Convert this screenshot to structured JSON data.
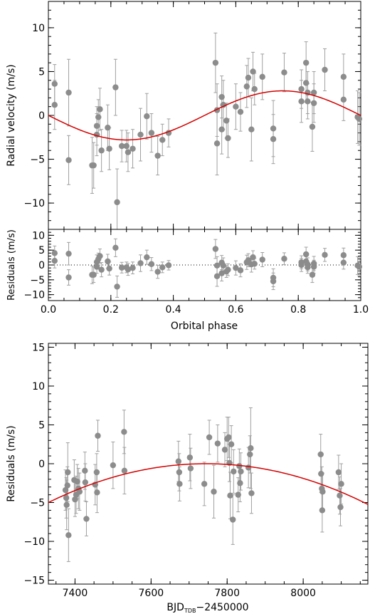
{
  "chart_data": [
    {
      "id": "rv",
      "type": "scatter",
      "xlabel": "",
      "ylabel": "Radial velocity (m/s)",
      "xlim": [
        0,
        1
      ],
      "ylim": [
        -13.0,
        13.0
      ],
      "xticks": [
        0.0,
        0.2,
        0.4,
        0.6,
        0.8,
        1.0
      ],
      "yticks": [
        -10,
        -5,
        0,
        5,
        10
      ],
      "ytick_labels": [
        "−10",
        "−5",
        "0",
        "5",
        "10"
      ],
      "model": "sinusoid, amplitude 2.8 m/s, minimum at phase 0.25, maximum at phase 0.75",
      "points": [
        {
          "x": 0.02,
          "y": 3.6,
          "e": 2.2
        },
        {
          "x": 0.02,
          "y": 1.2,
          "e": 2.8
        },
        {
          "x": 0.065,
          "y": 2.6,
          "e": 3.8
        },
        {
          "x": 0.065,
          "y": -5.1,
          "e": 2.8
        },
        {
          "x": 0.14,
          "y": -5.7,
          "e": 3.2
        },
        {
          "x": 0.145,
          "y": -5.7,
          "e": 2.6
        },
        {
          "x": 0.155,
          "y": -2.2,
          "e": 2.4
        },
        {
          "x": 0.155,
          "y": -1.2,
          "e": 2.2
        },
        {
          "x": 0.16,
          "y": -0.2,
          "e": 2.0
        },
        {
          "x": 0.165,
          "y": 0.7,
          "e": 2.4
        },
        {
          "x": 0.17,
          "y": -4.0,
          "e": 2.4
        },
        {
          "x": 0.19,
          "y": -1.4,
          "e": 2.6
        },
        {
          "x": 0.195,
          "y": -3.8,
          "e": 2.4
        },
        {
          "x": 0.215,
          "y": 3.2,
          "e": 3.2
        },
        {
          "x": 0.22,
          "y": -9.9,
          "e": 3.8
        },
        {
          "x": 0.235,
          "y": -3.5,
          "e": 1.8
        },
        {
          "x": 0.25,
          "y": -3.5,
          "e": 1.8
        },
        {
          "x": 0.255,
          "y": -4.2,
          "e": 2.2
        },
        {
          "x": 0.27,
          "y": -3.8,
          "e": 2.2
        },
        {
          "x": 0.295,
          "y": -2.2,
          "e": 3.0
        },
        {
          "x": 0.315,
          "y": -0.1,
          "e": 2.6
        },
        {
          "x": 0.33,
          "y": -2.0,
          "e": 2.2
        },
        {
          "x": 0.35,
          "y": -4.6,
          "e": 2.2
        },
        {
          "x": 0.365,
          "y": -2.8,
          "e": 1.8
        },
        {
          "x": 0.385,
          "y": -2.0,
          "e": 1.6
        },
        {
          "x": 0.535,
          "y": 6.0,
          "e": 3.4
        },
        {
          "x": 0.54,
          "y": 0.6,
          "e": 3.0
        },
        {
          "x": 0.54,
          "y": -3.2,
          "e": 3.6
        },
        {
          "x": 0.555,
          "y": 2.1,
          "e": 2.4
        },
        {
          "x": 0.555,
          "y": -1.6,
          "e": 2.8
        },
        {
          "x": 0.56,
          "y": 1.2,
          "e": 2.8
        },
        {
          "x": 0.57,
          "y": -0.6,
          "e": 2.0
        },
        {
          "x": 0.575,
          "y": -2.6,
          "e": 2.2
        },
        {
          "x": 0.6,
          "y": 1.0,
          "e": 2.6
        },
        {
          "x": 0.615,
          "y": 0.4,
          "e": 2.2
        },
        {
          "x": 0.635,
          "y": 3.3,
          "e": 2.4
        },
        {
          "x": 0.64,
          "y": 4.3,
          "e": 2.2
        },
        {
          "x": 0.65,
          "y": -1.6,
          "e": 3.6
        },
        {
          "x": 0.655,
          "y": 5.0,
          "e": 2.2
        },
        {
          "x": 0.66,
          "y": 3.0,
          "e": 1.8
        },
        {
          "x": 0.685,
          "y": 4.4,
          "e": 2.6
        },
        {
          "x": 0.72,
          "y": -1.5,
          "e": 3.2
        },
        {
          "x": 0.72,
          "y": -2.7,
          "e": 2.8
        },
        {
          "x": 0.755,
          "y": 4.9,
          "e": 2.2
        },
        {
          "x": 0.81,
          "y": 1.6,
          "e": 2.4
        },
        {
          "x": 0.81,
          "y": 3.0,
          "e": 2.2
        },
        {
          "x": 0.825,
          "y": 6.0,
          "e": 2.4
        },
        {
          "x": 0.825,
          "y": 3.7,
          "e": 2.2
        },
        {
          "x": 0.83,
          "y": 1.6,
          "e": 2.0
        },
        {
          "x": 0.83,
          "y": 2.6,
          "e": 2.4
        },
        {
          "x": 0.845,
          "y": -1.3,
          "e": 2.8
        },
        {
          "x": 0.85,
          "y": 1.4,
          "e": 2.2
        },
        {
          "x": 0.85,
          "y": 2.6,
          "e": 2.4
        },
        {
          "x": 0.885,
          "y": 5.2,
          "e": 2.4
        },
        {
          "x": 0.945,
          "y": 4.4,
          "e": 2.6
        },
        {
          "x": 0.945,
          "y": 1.8,
          "e": 2.4
        },
        {
          "x": 0.99,
          "y": -0.2,
          "e": 3.0
        },
        {
          "x": 0.995,
          "y": -0.4,
          "e": 3.0
        }
      ]
    },
    {
      "id": "res",
      "type": "scatter",
      "xlabel": "Orbital phase",
      "ylabel": "Residuals (m/s)",
      "xlim": [
        0,
        1
      ],
      "ylim": [
        -12,
        12
      ],
      "xticks": [
        0.0,
        0.2,
        0.4,
        0.6,
        0.8,
        1.0
      ],
      "xtick_labels": [
        "0.0",
        "0.2",
        "0.4",
        "0.6",
        "0.8",
        "1.0"
      ],
      "yticks": [
        -10,
        -5,
        0,
        5,
        10
      ],
      "ytick_labels": [
        "−10",
        "−5",
        "0",
        "5",
        "10"
      ],
      "reference_line": 0,
      "points": [
        {
          "x": 0.02,
          "y": 4.0,
          "e": 2.4
        },
        {
          "x": 0.02,
          "y": 1.4,
          "e": 2.4
        },
        {
          "x": 0.065,
          "y": 3.8,
          "e": 3.8
        },
        {
          "x": 0.065,
          "y": -4.2,
          "e": 2.6
        },
        {
          "x": 0.14,
          "y": -3.3,
          "e": 3.0
        },
        {
          "x": 0.145,
          "y": -3.3,
          "e": 2.6
        },
        {
          "x": 0.155,
          "y": 1.0,
          "e": 2.4
        },
        {
          "x": 0.155,
          "y": -0.6,
          "e": 2.2
        },
        {
          "x": 0.16,
          "y": 2.0,
          "e": 2.0
        },
        {
          "x": 0.165,
          "y": 3.0,
          "e": 2.4
        },
        {
          "x": 0.17,
          "y": -1.6,
          "e": 2.4
        },
        {
          "x": 0.19,
          "y": 1.2,
          "e": 2.4
        },
        {
          "x": 0.195,
          "y": -1.2,
          "e": 2.2
        },
        {
          "x": 0.215,
          "y": 5.8,
          "e": 3.0
        },
        {
          "x": 0.22,
          "y": -7.3,
          "e": 3.6
        },
        {
          "x": 0.235,
          "y": -0.9,
          "e": 1.8
        },
        {
          "x": 0.25,
          "y": -0.8,
          "e": 1.8
        },
        {
          "x": 0.255,
          "y": -1.5,
          "e": 2.0
        },
        {
          "x": 0.27,
          "y": -1.0,
          "e": 2.0
        },
        {
          "x": 0.295,
          "y": 0.6,
          "e": 2.8
        },
        {
          "x": 0.315,
          "y": 2.6,
          "e": 2.4
        },
        {
          "x": 0.33,
          "y": 0.3,
          "e": 2.2
        },
        {
          "x": 0.35,
          "y": -2.3,
          "e": 2.2
        },
        {
          "x": 0.365,
          "y": -0.8,
          "e": 1.8
        },
        {
          "x": 0.385,
          "y": -0.1,
          "e": 1.6
        },
        {
          "x": 0.535,
          "y": 5.4,
          "e": 3.2
        },
        {
          "x": 0.54,
          "y": -0.2,
          "e": 3.0
        },
        {
          "x": 0.54,
          "y": -3.8,
          "e": 3.4
        },
        {
          "x": 0.555,
          "y": 0.8,
          "e": 2.4
        },
        {
          "x": 0.555,
          "y": -2.8,
          "e": 2.6
        },
        {
          "x": 0.56,
          "y": -0.2,
          "e": 2.6
        },
        {
          "x": 0.57,
          "y": -2.2,
          "e": 2.0
        },
        {
          "x": 0.575,
          "y": -1.6,
          "e": 2.0
        },
        {
          "x": 0.6,
          "y": -1.0,
          "e": 2.4
        },
        {
          "x": 0.615,
          "y": -1.8,
          "e": 2.2
        },
        {
          "x": 0.635,
          "y": 0.9,
          "e": 2.4
        },
        {
          "x": 0.64,
          "y": 1.6,
          "e": 2.2
        },
        {
          "x": 0.65,
          "y": 0.2,
          "e": 2.6
        },
        {
          "x": 0.655,
          "y": 2.6,
          "e": 2.2
        },
        {
          "x": 0.66,
          "y": 0.4,
          "e": 1.8
        },
        {
          "x": 0.685,
          "y": 1.8,
          "e": 2.4
        },
        {
          "x": 0.72,
          "y": -4.3,
          "e": 3.0
        },
        {
          "x": 0.72,
          "y": -5.5,
          "e": 2.8
        },
        {
          "x": 0.755,
          "y": 2.1,
          "e": 2.0
        },
        {
          "x": 0.81,
          "y": 0.0,
          "e": 2.2
        },
        {
          "x": 0.81,
          "y": 0.9,
          "e": 2.2
        },
        {
          "x": 0.825,
          "y": 3.6,
          "e": 2.4
        },
        {
          "x": 0.825,
          "y": 1.2,
          "e": 2.2
        },
        {
          "x": 0.83,
          "y": -0.8,
          "e": 2.0
        },
        {
          "x": 0.83,
          "y": 0.2,
          "e": 2.2
        },
        {
          "x": 0.845,
          "y": -3.3,
          "e": 2.6
        },
        {
          "x": 0.85,
          "y": -0.6,
          "e": 2.2
        },
        {
          "x": 0.85,
          "y": 0.5,
          "e": 2.4
        },
        {
          "x": 0.885,
          "y": 3.4,
          "e": 2.2
        },
        {
          "x": 0.945,
          "y": 3.3,
          "e": 2.4
        },
        {
          "x": 0.945,
          "y": 0.8,
          "e": 2.2
        },
        {
          "x": 0.99,
          "y": -0.2,
          "e": 3.0
        },
        {
          "x": 0.995,
          "y": -0.6,
          "e": 3.0
        }
      ]
    },
    {
      "id": "time",
      "type": "scatter",
      "xlabel_main": "BJD",
      "xlabel_sub": "TDB",
      "xlabel_rest": "−2450000",
      "ylabel": "Residuals (m/s)",
      "xlim": [
        7330,
        8170
      ],
      "ylim": [
        -15.5,
        15.5
      ],
      "xticks": [
        7400,
        7600,
        7800,
        8000
      ],
      "xtick_labels": [
        "7400",
        "7600",
        "7800",
        "8000"
      ],
      "yticks": [
        -15,
        -10,
        -5,
        0,
        5,
        10,
        15
      ],
      "ytick_labels": [
        "−15",
        "−10",
        "−5",
        "0",
        "5",
        "10",
        "15"
      ],
      "model": "quadratic trend, peak 0 m/s near 7745, about −5 m/s at 7330",
      "points": [
        {
          "x": 7375,
          "y": -3.4,
          "e": 2.6
        },
        {
          "x": 7377,
          "y": -4.4,
          "e": 2.6
        },
        {
          "x": 7378,
          "y": -5.3,
          "e": 3.2
        },
        {
          "x": 7380,
          "y": -2.8,
          "e": 2.4
        },
        {
          "x": 7381,
          "y": -1.1,
          "e": 3.8
        },
        {
          "x": 7383,
          "y": -9.2,
          "e": 3.4
        },
        {
          "x": 7398,
          "y": -2.1,
          "e": 2.6
        },
        {
          "x": 7400,
          "y": -4.6,
          "e": 2.2
        },
        {
          "x": 7403,
          "y": -4.0,
          "e": 2.4
        },
        {
          "x": 7406,
          "y": -2.3,
          "e": 2.2
        },
        {
          "x": 7409,
          "y": -3.2,
          "e": 2.6
        },
        {
          "x": 7412,
          "y": -3.6,
          "e": 2.4
        },
        {
          "x": 7426,
          "y": -0.9,
          "e": 2.4
        },
        {
          "x": 7427,
          "y": -2.4,
          "e": 2.4
        },
        {
          "x": 7430,
          "y": -7.1,
          "e": 2.2
        },
        {
          "x": 7453,
          "y": -2.7,
          "e": 2.6
        },
        {
          "x": 7457,
          "y": -1.1,
          "e": 2.4
        },
        {
          "x": 7458,
          "y": -3.7,
          "e": 2.6
        },
        {
          "x": 7460,
          "y": 3.6,
          "e": 2.0
        },
        {
          "x": 7500,
          "y": -0.2,
          "e": 3.0
        },
        {
          "x": 7529,
          "y": 4.1,
          "e": 2.8
        },
        {
          "x": 7530,
          "y": -0.9,
          "e": 3.0
        },
        {
          "x": 7672,
          "y": 0.3,
          "e": 2.6
        },
        {
          "x": 7674,
          "y": -1.1,
          "e": 2.4
        },
        {
          "x": 7675,
          "y": -2.6,
          "e": 2.2
        },
        {
          "x": 7702,
          "y": 0.8,
          "e": 3.0
        },
        {
          "x": 7704,
          "y": -0.6,
          "e": 2.6
        },
        {
          "x": 7740,
          "y": -2.6,
          "e": 2.8
        },
        {
          "x": 7753,
          "y": 3.4,
          "e": 2.2
        },
        {
          "x": 7765,
          "y": -3.6,
          "e": 3.4
        },
        {
          "x": 7775,
          "y": 2.6,
          "e": 2.4
        },
        {
          "x": 7794,
          "y": 1.8,
          "e": 2.2
        },
        {
          "x": 7800,
          "y": 3.2,
          "e": 2.8
        },
        {
          "x": 7804,
          "y": 3.4,
          "e": 2.6
        },
        {
          "x": 7806,
          "y": 0.1,
          "e": 2.4
        },
        {
          "x": 7808,
          "y": -4.1,
          "e": 3.0
        },
        {
          "x": 7811,
          "y": 2.5,
          "e": 2.4
        },
        {
          "x": 7815,
          "y": -7.2,
          "e": 3.2
        },
        {
          "x": 7817,
          "y": -1.0,
          "e": 2.8
        },
        {
          "x": 7829,
          "y": -4.0,
          "e": 2.2
        },
        {
          "x": 7832,
          "y": -0.3,
          "e": 2.2
        },
        {
          "x": 7834,
          "y": -2.5,
          "e": 2.4
        },
        {
          "x": 7836,
          "y": -1.0,
          "e": 2.4
        },
        {
          "x": 7856,
          "y": -0.5,
          "e": 2.6
        },
        {
          "x": 7860,
          "y": 1.2,
          "e": 2.4
        },
        {
          "x": 7862,
          "y": 2.0,
          "e": 5.2
        },
        {
          "x": 7864,
          "y": -3.8,
          "e": 2.6
        },
        {
          "x": 8046,
          "y": 1.2,
          "e": 2.6
        },
        {
          "x": 8047,
          "y": -1.3,
          "e": 2.4
        },
        {
          "x": 8049,
          "y": -3.2,
          "e": 2.8
        },
        {
          "x": 8050,
          "y": -6.0,
          "e": 2.8
        },
        {
          "x": 8051,
          "y": -3.6,
          "e": 2.4
        },
        {
          "x": 8093,
          "y": -1.1,
          "e": 2.2
        },
        {
          "x": 8096,
          "y": -4.1,
          "e": 2.4
        },
        {
          "x": 8098,
          "y": -5.6,
          "e": 2.4
        },
        {
          "x": 8100,
          "y": -2.6,
          "e": 2.6
        }
      ]
    }
  ],
  "colors": {
    "points": "#8c8c8c",
    "errorbars": "#a0a0a0",
    "model": "#d40000",
    "axes": "#000000",
    "background": "#ffffff"
  }
}
